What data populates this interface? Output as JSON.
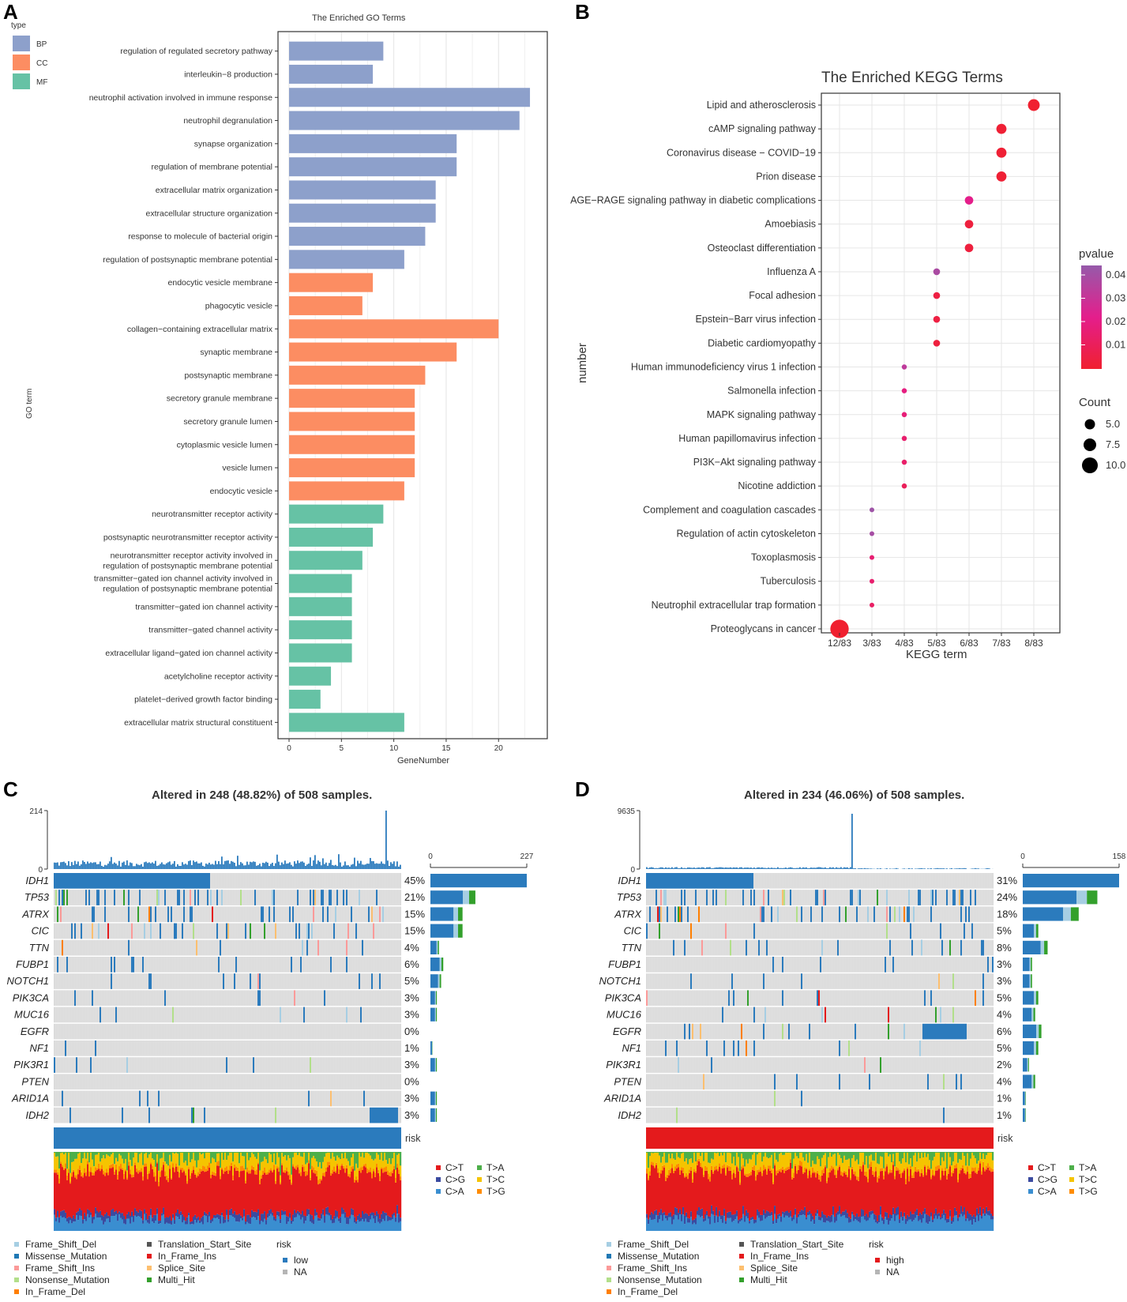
{
  "panels": {
    "A": "A",
    "B": "B",
    "C": "C",
    "D": "D"
  },
  "chart_data": [
    {
      "type": "bar",
      "title": "The Enriched GO Terms",
      "xlabel": "GeneNumber",
      "ylabel": "GO term",
      "xlim": [
        0,
        24
      ],
      "xticks": [
        0,
        5,
        10,
        15,
        20
      ],
      "legend_title": "type",
      "legend": [
        {
          "name": "BP",
          "color": "#8da0cb"
        },
        {
          "name": "CC",
          "color": "#fc8d62"
        },
        {
          "name": "MF",
          "color": "#66c2a5"
        }
      ],
      "categories": [
        {
          "term": "regulation of regulated secretory pathway",
          "value": 9,
          "type": "BP"
        },
        {
          "term": "interleukin−8 production",
          "value": 8,
          "type": "BP"
        },
        {
          "term": "neutrophil activation involved in immune response",
          "value": 23,
          "type": "BP"
        },
        {
          "term": "neutrophil degranulation",
          "value": 22,
          "type": "BP"
        },
        {
          "term": "synapse organization",
          "value": 16,
          "type": "BP"
        },
        {
          "term": "regulation of membrane potential",
          "value": 16,
          "type": "BP"
        },
        {
          "term": "extracellular matrix organization",
          "value": 14,
          "type": "BP"
        },
        {
          "term": "extracellular structure organization",
          "value": 14,
          "type": "BP"
        },
        {
          "term": "response to molecule of bacterial origin",
          "value": 13,
          "type": "BP"
        },
        {
          "term": "regulation of postsynaptic membrane potential",
          "value": 11,
          "type": "BP"
        },
        {
          "term": "endocytic vesicle membrane",
          "value": 8,
          "type": "CC"
        },
        {
          "term": "phagocytic vesicle",
          "value": 7,
          "type": "CC"
        },
        {
          "term": "collagen−containing extracellular matrix",
          "value": 20,
          "type": "CC"
        },
        {
          "term": "synaptic membrane",
          "value": 16,
          "type": "CC"
        },
        {
          "term": "postsynaptic membrane",
          "value": 13,
          "type": "CC"
        },
        {
          "term": "secretory granule membrane",
          "value": 12,
          "type": "CC"
        },
        {
          "term": "secretory granule lumen",
          "value": 12,
          "type": "CC"
        },
        {
          "term": "cytoplasmic vesicle lumen",
          "value": 12,
          "type": "CC"
        },
        {
          "term": "vesicle lumen",
          "value": 12,
          "type": "CC"
        },
        {
          "term": "endocytic vesicle",
          "value": 11,
          "type": "CC"
        },
        {
          "term": "neurotransmitter receptor activity",
          "value": 9,
          "type": "MF"
        },
        {
          "term": "postsynaptic neurotransmitter receptor activity",
          "value": 8,
          "type": "MF"
        },
        {
          "term": "neurotransmitter receptor activity involved in|regulation of postsynaptic membrane potential",
          "value": 7,
          "type": "MF"
        },
        {
          "term": "transmitter−gated ion channel activity involved in|regulation of postsynaptic membrane potential",
          "value": 6,
          "type": "MF"
        },
        {
          "term": "transmitter−gated ion channel activity",
          "value": 6,
          "type": "MF"
        },
        {
          "term": "transmitter−gated channel activity",
          "value": 6,
          "type": "MF"
        },
        {
          "term": "extracellular ligand−gated ion channel activity",
          "value": 6,
          "type": "MF"
        },
        {
          "term": "acetylcholine receptor activity",
          "value": 4,
          "type": "MF"
        },
        {
          "term": "platelet−derived growth factor binding",
          "value": 3,
          "type": "MF"
        },
        {
          "term": "extracellular matrix structural constituent",
          "value": 11,
          "type": "MF"
        }
      ]
    },
    {
      "type": "scatter",
      "title": "The Enriched KEGG Terms",
      "xlabel": "KEGG term",
      "ylabel": "number",
      "xcategories": [
        "12/83",
        "3/83",
        "4/83",
        "5/83",
        "6/83",
        "7/83",
        "8/83"
      ],
      "color_legend_title": "pvalue",
      "color_legend_ticks": [
        "0.04",
        "0.03",
        "0.02",
        "0.01"
      ],
      "size_legend_title": "Count",
      "size_legend": [
        "5.0",
        "7.5",
        "10.0"
      ],
      "points": [
        {
          "term": "Lipid and atherosclerosis",
          "ratio": "8/83",
          "count": 8,
          "pvalue": 0.001
        },
        {
          "term": "cAMP signaling pathway",
          "ratio": "7/83",
          "count": 7,
          "pvalue": 0.002
        },
        {
          "term": "Coronavirus disease − COVID−19",
          "ratio": "7/83",
          "count": 7,
          "pvalue": 0.002
        },
        {
          "term": "Prion disease",
          "ratio": "7/83",
          "count": 7,
          "pvalue": 0.002
        },
        {
          "term": "AGE−RAGE signaling pathway in diabetic complications",
          "ratio": "6/83",
          "count": 6,
          "pvalue": 0.02
        },
        {
          "term": "Amoebiasis",
          "ratio": "6/83",
          "count": 6,
          "pvalue": 0.004
        },
        {
          "term": "Osteoclast differentiation",
          "ratio": "6/83",
          "count": 6,
          "pvalue": 0.004
        },
        {
          "term": "Influenza A",
          "ratio": "5/83",
          "count": 5,
          "pvalue": 0.035
        },
        {
          "term": "Focal adhesion",
          "ratio": "5/83",
          "count": 5,
          "pvalue": 0.005
        },
        {
          "term": "Epstein−Barr virus infection",
          "ratio": "5/83",
          "count": 5,
          "pvalue": 0.005
        },
        {
          "term": "Diabetic cardiomyopathy",
          "ratio": "5/83",
          "count": 5,
          "pvalue": 0.004
        },
        {
          "term": "Human immunodeficiency virus 1 infection",
          "ratio": "4/83",
          "count": 4,
          "pvalue": 0.03
        },
        {
          "term": "Salmonella infection",
          "ratio": "4/83",
          "count": 4,
          "pvalue": 0.018
        },
        {
          "term": "MAPK signaling pathway",
          "ratio": "4/83",
          "count": 4,
          "pvalue": 0.016
        },
        {
          "term": "Human papillomavirus infection",
          "ratio": "4/83",
          "count": 4,
          "pvalue": 0.014
        },
        {
          "term": "PI3K−Akt signaling pathway",
          "ratio": "4/83",
          "count": 4,
          "pvalue": 0.013
        },
        {
          "term": "Nicotine addiction",
          "ratio": "4/83",
          "count": 4,
          "pvalue": 0.01
        },
        {
          "term": "Complement and coagulation cascades",
          "ratio": "3/83",
          "count": 3,
          "pvalue": 0.038
        },
        {
          "term": "Regulation of actin cytoskeleton",
          "ratio": "3/83",
          "count": 3,
          "pvalue": 0.036
        },
        {
          "term": "Toxoplasmosis",
          "ratio": "3/83",
          "count": 3,
          "pvalue": 0.015
        },
        {
          "term": "Tuberculosis",
          "ratio": "3/83",
          "count": 3,
          "pvalue": 0.014
        },
        {
          "term": "Neutrophil extracellular trap formation",
          "ratio": "3/83",
          "count": 3,
          "pvalue": 0.012
        },
        {
          "term": "Proteoglycans in cancer",
          "ratio": "12/83",
          "count": 12,
          "pvalue": 0.001
        }
      ]
    },
    {
      "type": "heatmap",
      "subtype": "oncoplot",
      "title": "Altered in 248 (48.82%) of 508 samples.",
      "tmb_ymax": "214",
      "tmb_ymin": "0",
      "side_xmin": "0",
      "side_xmax": "227",
      "risk_label": "risk",
      "risk_color": "#2b7bbd",
      "genes": [
        {
          "gene": "IDH1",
          "pct": "45%",
          "frac": 0.45
        },
        {
          "gene": "TP53",
          "pct": "21%",
          "frac": 0.21
        },
        {
          "gene": "ATRX",
          "pct": "15%",
          "frac": 0.15
        },
        {
          "gene": "CIC",
          "pct": "15%",
          "frac": 0.15
        },
        {
          "gene": "TTN",
          "pct": "4%",
          "frac": 0.04
        },
        {
          "gene": "FUBP1",
          "pct": "6%",
          "frac": 0.06
        },
        {
          "gene": "NOTCH1",
          "pct": "5%",
          "frac": 0.05
        },
        {
          "gene": "PIK3CA",
          "pct": "3%",
          "frac": 0.03
        },
        {
          "gene": "MUC16",
          "pct": "3%",
          "frac": 0.03
        },
        {
          "gene": "EGFR",
          "pct": "0%",
          "frac": 0.0
        },
        {
          "gene": "NF1",
          "pct": "1%",
          "frac": 0.01
        },
        {
          "gene": "PIK3R1",
          "pct": "3%",
          "frac": 0.03
        },
        {
          "gene": "PTEN",
          "pct": "0%",
          "frac": 0.0
        },
        {
          "gene": "ARID1A",
          "pct": "3%",
          "frac": 0.03
        },
        {
          "gene": "IDH2",
          "pct": "3%",
          "frac": 0.03
        }
      ],
      "risk_legend": [
        {
          "name": "low",
          "color": "#2b7bbd"
        },
        {
          "name": "NA",
          "color": "#b5b5b5"
        }
      ]
    },
    {
      "type": "heatmap",
      "subtype": "oncoplot",
      "title": "Altered in 234 (46.06%) of 508 samples.",
      "tmb_ymax": "9635",
      "tmb_ymin": "0",
      "side_xmin": "0",
      "side_xmax": "158",
      "risk_label": "risk",
      "risk_color": "#e41a1c",
      "genes": [
        {
          "gene": "IDH1",
          "pct": "31%",
          "frac": 0.31
        },
        {
          "gene": "TP53",
          "pct": "24%",
          "frac": 0.24
        },
        {
          "gene": "ATRX",
          "pct": "18%",
          "frac": 0.18
        },
        {
          "gene": "CIC",
          "pct": "5%",
          "frac": 0.05
        },
        {
          "gene": "TTN",
          "pct": "8%",
          "frac": 0.08
        },
        {
          "gene": "FUBP1",
          "pct": "3%",
          "frac": 0.03
        },
        {
          "gene": "NOTCH1",
          "pct": "3%",
          "frac": 0.03
        },
        {
          "gene": "PIK3CA",
          "pct": "5%",
          "frac": 0.05
        },
        {
          "gene": "MUC16",
          "pct": "4%",
          "frac": 0.04
        },
        {
          "gene": "EGFR",
          "pct": "6%",
          "frac": 0.06
        },
        {
          "gene": "NF1",
          "pct": "5%",
          "frac": 0.05
        },
        {
          "gene": "PIK3R1",
          "pct": "2%",
          "frac": 0.02
        },
        {
          "gene": "PTEN",
          "pct": "4%",
          "frac": 0.04
        },
        {
          "gene": "ARID1A",
          "pct": "1%",
          "frac": 0.01
        },
        {
          "gene": "IDH2",
          "pct": "1%",
          "frac": 0.01
        }
      ],
      "risk_legend": [
        {
          "name": "high",
          "color": "#e41a1c"
        },
        {
          "name": "NA",
          "color": "#b5b5b5"
        }
      ]
    }
  ],
  "titv_legend": [
    {
      "name": "C>T",
      "color": "#e41a1c"
    },
    {
      "name": "T>A",
      "color": "#4daf4a"
    },
    {
      "name": "C>G",
      "color": "#3b4ba0"
    },
    {
      "name": "T>C",
      "color": "#f5c400"
    },
    {
      "name": "C>A",
      "color": "#3a8ed0"
    },
    {
      "name": "T>G",
      "color": "#ff8c00"
    }
  ],
  "variant_legend_title": "risk",
  "variant_legend": [
    {
      "name": "Frame_Shift_Del",
      "color": "#a6cee3"
    },
    {
      "name": "Missense_Mutation",
      "color": "#1f78b4"
    },
    {
      "name": "Frame_Shift_Ins",
      "color": "#fb9a99"
    },
    {
      "name": "Nonsense_Mutation",
      "color": "#b2df8a"
    },
    {
      "name": "In_Frame_Del",
      "color": "#ff7f00"
    },
    {
      "name": "Translation_Start_Site",
      "color": "#555555"
    },
    {
      "name": "In_Frame_Ins",
      "color": "#e31a1c"
    },
    {
      "name": "Splice_Site",
      "color": "#fdbf6f"
    },
    {
      "name": "Multi_Hit",
      "color": "#33a02c"
    }
  ],
  "colors": {
    "BP": "#8da0cb",
    "CC": "#fc8d62",
    "MF": "#66c2a5",
    "missense": "#2b7bbd",
    "cell_bg": "#d9d9d9",
    "grid": "#ebebeb"
  }
}
